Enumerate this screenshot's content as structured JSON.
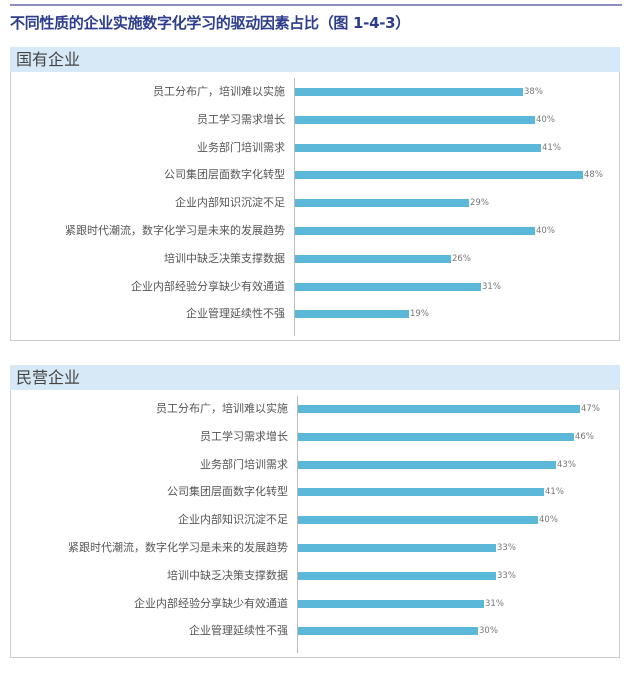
{
  "chart_data": [
    {
      "type": "bar",
      "orientation": "horizontal",
      "title": "国有企业",
      "categories": [
        "员工分布广，培训难以实施",
        "员工学习需求增长",
        "业务部门培训需求",
        "公司集团层面数字化转型",
        "企业内部知识沉淀不足",
        "紧跟时代潮流，数字化学习是未来的发展趋势",
        "培训中缺乏决策支撑数据",
        "企业内部经验分享缺少有效通道",
        "企业管理延续性不强"
      ],
      "values": [
        38,
        40,
        41,
        48,
        29,
        40,
        26,
        31,
        19
      ],
      "labels": [
        "38%",
        "40%",
        "41%",
        "48%",
        "29%",
        "40%",
        "26%",
        "31%",
        "19%"
      ],
      "unit": "%",
      "color": "#5bb8d9"
    },
    {
      "type": "bar",
      "orientation": "horizontal",
      "title": "民营企业",
      "categories": [
        "员工分布广，培训难以实施",
        "员工学习需求增长",
        "业务部门培训需求",
        "公司集团层面数字化转型",
        "企业内部知识沉淀不足",
        "紧跟时代潮流，数字化学习是未来的发展趋势",
        "培训中缺乏决策支撑数据",
        "企业内部经验分享缺少有效通道",
        "企业管理延续性不强"
      ],
      "values": [
        47,
        46,
        43,
        41,
        40,
        33,
        33,
        31,
        30
      ],
      "labels": [
        "47%",
        "46%",
        "43%",
        "41%",
        "40%",
        "33%",
        "33%",
        "31%",
        "30%"
      ],
      "unit": "%",
      "color": "#5bb8d9"
    }
  ],
  "title": "不同性质的企业实施数字化学习的驱动因素占比（图 1-4-3）"
}
